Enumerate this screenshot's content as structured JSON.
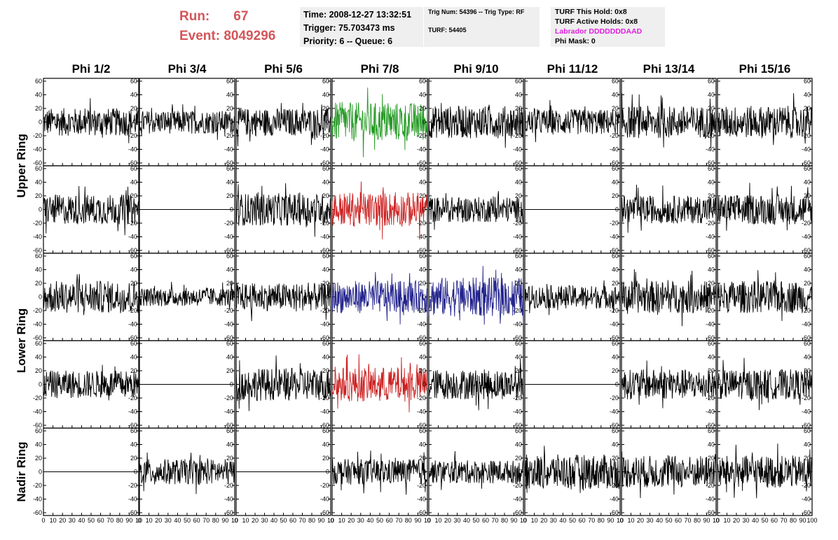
{
  "header": {
    "run_label": "Run:",
    "run_value": "67",
    "event_label": "Event:",
    "event_value": "8049296"
  },
  "info_time": {
    "time": "Time: 2008-12-27 13:32:51",
    "trigger": "Trigger: 75.703473 ms",
    "priority": "Priority: 6 -- Queue: 6"
  },
  "info_trig": {
    "trig_line": "Trig Num: 54396 -- Trig Type: RF",
    "turf_line": "TURF: 54405"
  },
  "info_turf": {
    "this_hold": "TURF This Hold: 0x8",
    "active_holds": "TURF Active Holds: 0x8",
    "labrador": "Labrador DDDDDDDAAD",
    "phi_mask": "Phi Mask: 0"
  },
  "colors": {
    "run_text": "#d3565a",
    "labrador_text": "#e020e0",
    "trace_default": "#000000",
    "trace_green": "#229922",
    "trace_red": "#cc2222",
    "trace_blue": "#22228c",
    "panel_bg": "#efefef"
  },
  "chart_data": {
    "type": "line",
    "columns": [
      "Phi 1/2",
      "Phi 3/4",
      "Phi 5/6",
      "Phi 7/8",
      "Phi 9/10",
      "Phi 11/12",
      "Phi 13/14",
      "Phi 15/16"
    ],
    "row_titles": [
      {
        "label": "Upper Ring",
        "rows": [
          0,
          1
        ]
      },
      {
        "label": "Lower Ring",
        "rows": [
          2,
          3
        ]
      },
      {
        "label": "Nadir Ring",
        "rows": [
          4
        ]
      }
    ],
    "ylim": [
      -60,
      60
    ],
    "yticks": [
      -60,
      -40,
      -20,
      0,
      20,
      40,
      60
    ],
    "xlim": [
      0,
      100
    ],
    "xticks": [
      0,
      10,
      20,
      30,
      40,
      50,
      60,
      70,
      80,
      90,
      100
    ],
    "xtick_labels_col": [
      "0",
      "10",
      "20",
      "30",
      "40",
      "50",
      "60",
      "70",
      "80",
      "90",
      "10"
    ],
    "xtick_labels_last": [
      "0",
      "10",
      "20",
      "30",
      "40",
      "50",
      "60",
      "70",
      "80",
      "90",
      "100"
    ],
    "cells": [
      [
        {
          "amp": 12,
          "color": "trace_default"
        },
        {
          "amp": 10,
          "color": "trace_default"
        },
        {
          "amp": 12,
          "color": "trace_default"
        },
        {
          "amp": 17,
          "color": "trace_green"
        },
        {
          "amp": 14,
          "color": "trace_default"
        },
        {
          "amp": 11,
          "color": "trace_default"
        },
        {
          "amp": 14,
          "color": "trace_default"
        },
        {
          "amp": 14,
          "color": "trace_default"
        }
      ],
      [
        {
          "amp": 13,
          "color": "trace_default"
        },
        {
          "amp": 0,
          "color": "trace_default"
        },
        {
          "amp": 14,
          "color": "trace_default"
        },
        {
          "amp": 15,
          "color": "trace_red"
        },
        {
          "amp": 11,
          "color": "trace_default"
        },
        {
          "amp": 0,
          "color": "trace_default"
        },
        {
          "amp": 12,
          "color": "trace_default"
        },
        {
          "amp": 13,
          "color": "trace_default"
        }
      ],
      [
        {
          "amp": 14,
          "color": "trace_default"
        },
        {
          "amp": 8,
          "color": "trace_default"
        },
        {
          "amp": 12,
          "color": "trace_default"
        },
        {
          "amp": 14,
          "color": "trace_blue"
        },
        {
          "amp": 17,
          "color": "trace_blue"
        },
        {
          "amp": 10,
          "color": "trace_default"
        },
        {
          "amp": 14,
          "color": "trace_default"
        },
        {
          "amp": 14,
          "color": "trace_default"
        }
      ],
      [
        {
          "amp": 12,
          "color": "trace_default"
        },
        {
          "amp": 0,
          "color": "trace_default"
        },
        {
          "amp": 14,
          "color": "trace_default"
        },
        {
          "amp": 15,
          "color": "trace_red"
        },
        {
          "amp": 13,
          "color": "trace_default"
        },
        {
          "amp": 0,
          "color": "trace_default"
        },
        {
          "amp": 13,
          "color": "trace_default"
        },
        {
          "amp": 13,
          "color": "trace_default"
        }
      ],
      [
        {
          "amp": 0,
          "color": "trace_default"
        },
        {
          "amp": 11,
          "color": "trace_default"
        },
        {
          "amp": 0,
          "color": "trace_default"
        },
        {
          "amp": 11,
          "color": "trace_default"
        },
        {
          "amp": 10,
          "color": "trace_default"
        },
        {
          "amp": 15,
          "color": "trace_default"
        },
        {
          "amp": 14,
          "color": "trace_default"
        },
        {
          "amp": 14,
          "color": "trace_default"
        }
      ]
    ]
  }
}
